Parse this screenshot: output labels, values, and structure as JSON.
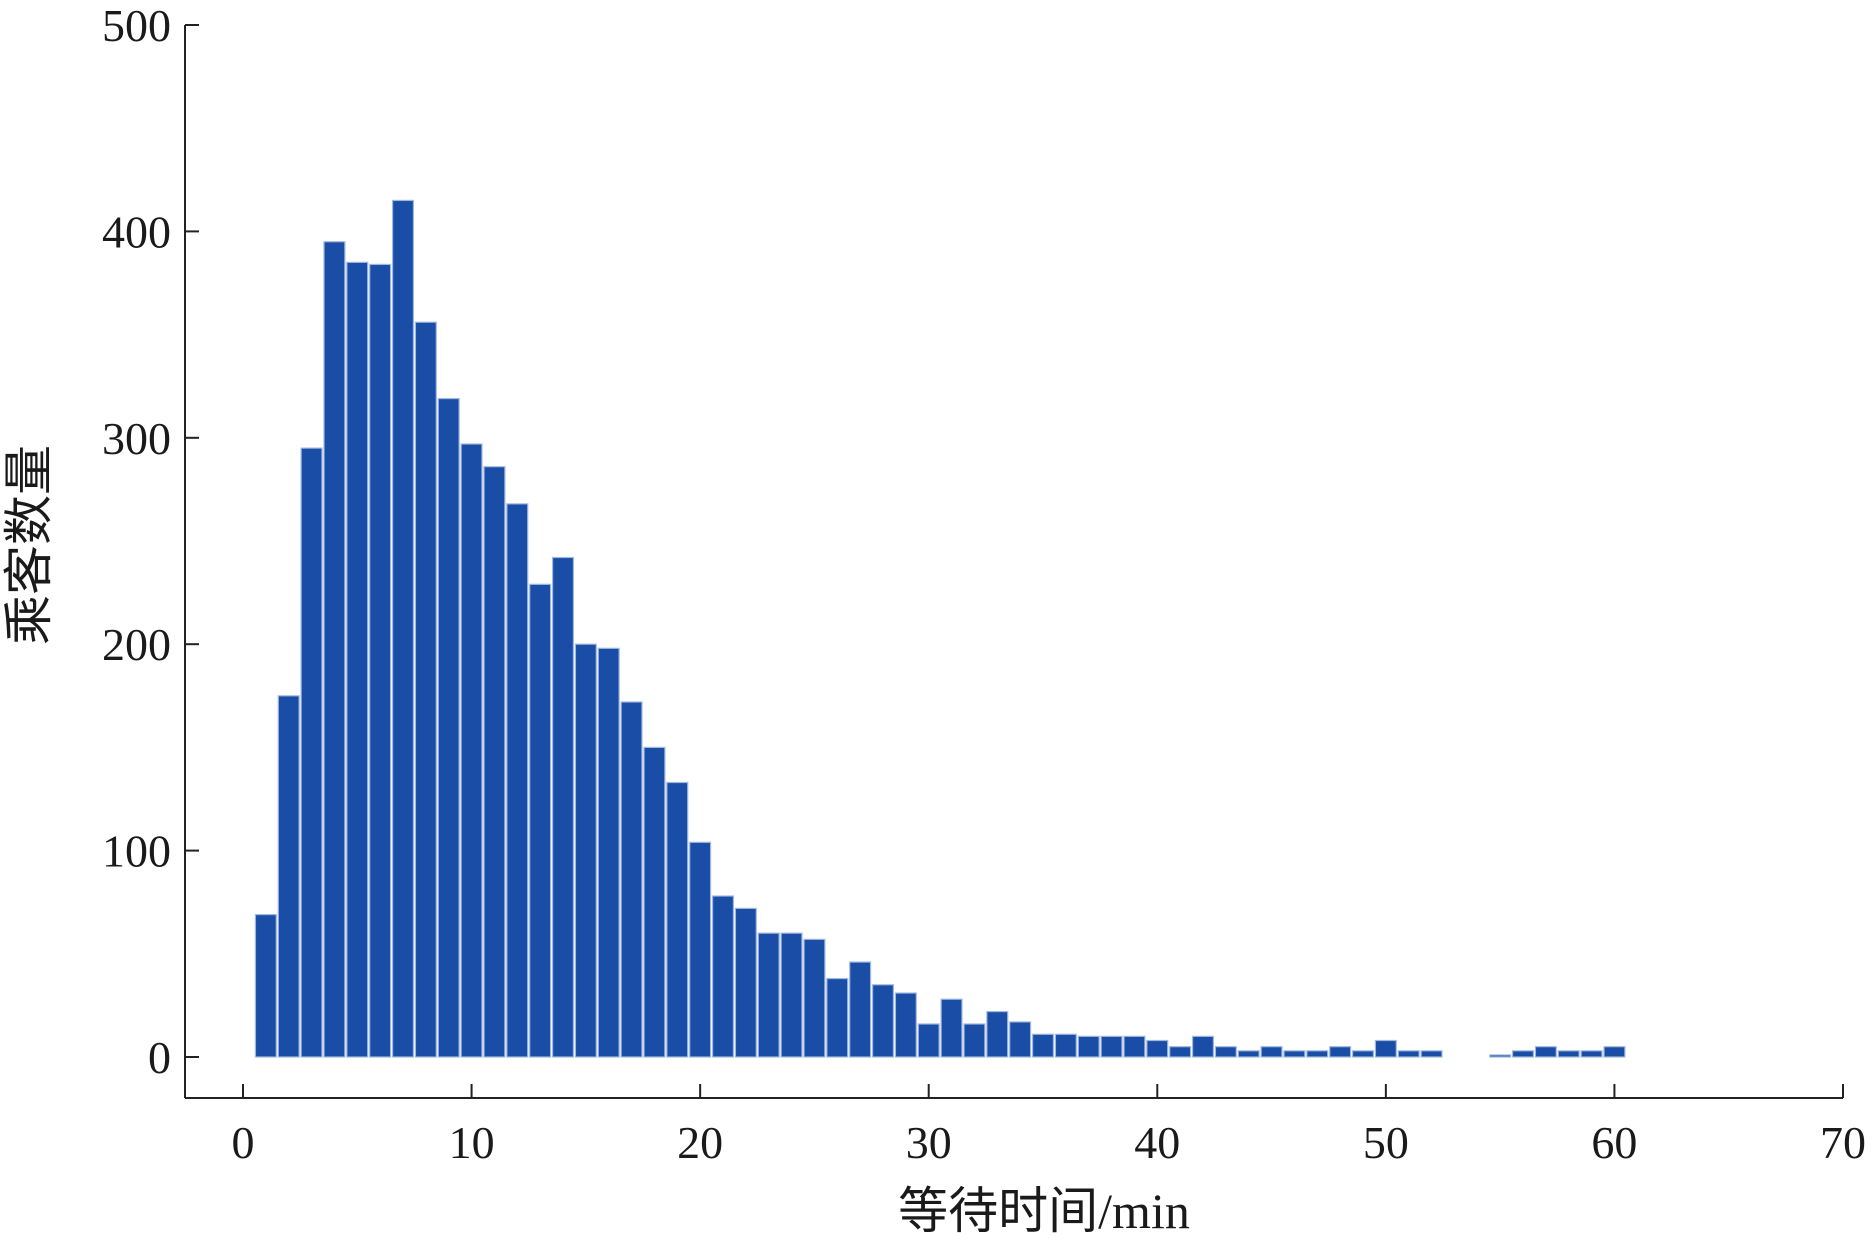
{
  "chart_data": {
    "type": "bar",
    "title": "",
    "xlabel": "等待时间/min",
    "ylabel": "乘客数量",
    "xlim": [
      0,
      70
    ],
    "ylim": [
      0,
      500
    ],
    "x_ticks": [
      0,
      10,
      20,
      30,
      40,
      50,
      60,
      70
    ],
    "y_ticks": [
      0,
      100,
      200,
      300,
      400,
      500
    ],
    "grid": false,
    "legend": "none",
    "bar_color": "#1a4ea6",
    "bar_edge_color": "#9fb8e0",
    "bin_width": 1,
    "x": [
      1,
      2,
      3,
      4,
      5,
      6,
      7,
      8,
      9,
      10,
      11,
      12,
      13,
      14,
      15,
      16,
      17,
      18,
      19,
      20,
      21,
      22,
      23,
      24,
      25,
      26,
      27,
      28,
      29,
      30,
      31,
      32,
      33,
      34,
      35,
      36,
      37,
      38,
      39,
      40,
      41,
      42,
      43,
      44,
      45,
      46,
      47,
      48,
      49,
      50,
      51,
      52,
      53,
      54,
      55,
      56,
      57,
      58,
      59,
      60
    ],
    "values": [
      69,
      175,
      295,
      395,
      385,
      384,
      415,
      356,
      319,
      297,
      286,
      268,
      229,
      242,
      200,
      198,
      172,
      150,
      133,
      104,
      78,
      72,
      60,
      60,
      57,
      38,
      46,
      35,
      31,
      16,
      28,
      16,
      22,
      17,
      11,
      11,
      10,
      10,
      10,
      8,
      5,
      10,
      5,
      3,
      5,
      3,
      3,
      5,
      3,
      8,
      3,
      3,
      0,
      0,
      1,
      3,
      5,
      3,
      3,
      5
    ]
  }
}
